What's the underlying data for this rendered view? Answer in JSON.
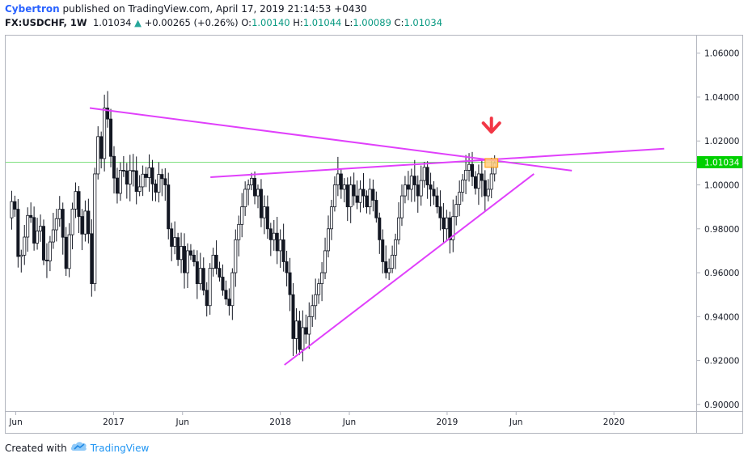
{
  "header": {
    "author": "Cybertron",
    "published_text": "published on TradingView.com, April 17, 2019 21:14:53 +0430",
    "symbol": "FX:USDCHF, 1W",
    "last": "1.01034",
    "change_arrow": "▲",
    "change": "+0.00265 (+0.26%)",
    "o_label": "O:",
    "o_value": "1.00140",
    "h_label": "H:",
    "h_value": "1.01044",
    "l_label": "L:",
    "l_value": "1.00089",
    "c_label": "C:",
    "c_value": "1.01034"
  },
  "footer": {
    "created_with": "Created with",
    "brand": "TradingView",
    "logo_icon": "tradingview-cloud-icon"
  },
  "colors": {
    "trendline": "#e040fb",
    "arrow": "#f23645",
    "price_line": "#7fe07f",
    "price_label_bg": "#00d000",
    "highlight_fill": "#ffcc80",
    "highlight_stroke": "#ff9800",
    "candle": "#131722"
  },
  "chart_data": {
    "type": "candlestick",
    "y_range": [
      0.897,
      1.068
    ],
    "y_ticks": [
      "0.90000",
      "0.92000",
      "0.94000",
      "0.96000",
      "0.98000",
      "1.00000",
      "1.02000",
      "1.04000",
      "1.06000"
    ],
    "x_ticks": [
      "Jun",
      "2017",
      "Jun",
      "2018",
      "Jun",
      "2019",
      "Jun",
      "2020"
    ],
    "current_price": "1.01034",
    "series": [
      {
        "segments": [
          {
            "start": "2016-05-16",
            "end": "2016-11-14",
            "values": [
              0.985,
              0.997,
              0.962,
              0.975,
              0.991,
              0.972,
              0.985,
              0.96,
              0.974,
              0.983,
              0.99,
              0.96,
              0.985,
              0.998,
              0.975,
              0.992,
              0.955
            ]
          },
          {
            "start": "2016-11-14",
            "end": "2016-12-19",
            "values": [
              0.975,
              1.005,
              1.022,
              1.012,
              1.035,
              1.03
            ]
          },
          {
            "start": "2016-12-19",
            "end": "2017-04-24",
            "values": [
              1.03,
              1.012,
              1.002,
              0.995,
              1.01,
              1.005,
              0.998,
              1.012,
              1.002,
              0.992,
              1.008,
              1.0,
              1.01,
              1.002,
              0.995,
              1.005,
              1.003,
              1.0
            ]
          },
          {
            "start": "2017-04-24",
            "end": "2017-08-07",
            "values": [
              1.0,
              0.98,
              0.972,
              0.976,
              0.966,
              0.972,
              0.96,
              0.97,
              0.968,
              0.965,
              0.955,
              0.962,
              0.952,
              0.945,
              0.962,
              0.968
            ]
          },
          {
            "start": "2017-08-07",
            "end": "2017-09-11",
            "values": [
              0.968,
              0.962,
              0.958,
              0.952,
              0.948,
              0.945
            ]
          },
          {
            "start": "2017-09-11",
            "end": "2017-10-30",
            "values": [
              0.945,
              0.96,
              0.975,
              0.982,
              0.99,
              0.998,
              1.0,
              1.003
            ]
          },
          {
            "start": "2017-10-30",
            "end": "2018-01-29",
            "values": [
              1.003,
              0.995,
              0.998,
              0.985,
              0.99,
              0.98,
              0.975,
              0.978,
              0.97,
              0.975,
              0.965,
              0.96,
              0.95,
              0.93
            ]
          },
          {
            "start": "2018-01-29",
            "end": "2018-03-19",
            "values": [
              0.93,
              0.938,
              0.925,
              0.935,
              0.932,
              0.94,
              0.945,
              0.95
            ]
          },
          {
            "start": "2018-03-19",
            "end": "2018-05-07",
            "values": [
              0.95,
              0.955,
              0.96,
              0.97,
              0.98,
              0.99,
              1.0,
              1.005
            ]
          },
          {
            "start": "2018-05-07",
            "end": "2018-07-16",
            "values": [
              1.005,
              0.998,
              1.0,
              0.99,
              1.0,
              0.995,
              0.992,
              0.998,
              0.995,
              0.99,
              0.998
            ]
          },
          {
            "start": "2018-07-16",
            "end": "2018-09-03",
            "values": [
              0.998,
              0.993,
              0.985,
              0.975,
              0.965,
              0.96,
              0.962,
              0.968
            ]
          },
          {
            "start": "2018-09-03",
            "end": "2018-11-12",
            "values": [
              0.968,
              0.975,
              0.985,
              0.995,
              1.0,
              0.998,
              1.004,
              1.0,
              0.995,
              1.002,
              1.008
            ]
          },
          {
            "start": "2018-11-12",
            "end": "2019-01-07",
            "values": [
              1.008,
              1.0,
              0.998,
              0.995,
              0.99,
              0.985,
              0.98,
              0.985,
              0.975
            ]
          },
          {
            "start": "2019-01-07",
            "end": "2019-03-11",
            "values": [
              0.975,
              0.985,
              0.99,
              0.995,
              1.0,
              1.005,
              1.008,
              1.01,
              1.002,
              0.998,
              1.005
            ]
          },
          {
            "start": "2019-03-11",
            "end": "2019-04-15",
            "values": [
              1.005,
              1.002,
              0.995,
              0.998,
              1.005,
              1.01
            ]
          }
        ]
      }
    ],
    "trendlines": [
      {
        "name": "upper-resistance-line",
        "from": [
          "2016-11-10",
          1.035
        ],
        "to": [
          "2019-10-01",
          1.0065
        ]
      },
      {
        "name": "mid-rising-line",
        "from": [
          "2017-08-01",
          1.0035
        ],
        "to": [
          "2020-04-20",
          1.0165
        ]
      },
      {
        "name": "lower-support-line",
        "from": [
          "2018-01-10",
          0.918
        ],
        "to": [
          "2019-07-10",
          1.005
        ]
      }
    ],
    "highlight_zone": {
      "x": [
        "2019-03-25",
        "2019-04-22"
      ],
      "y": [
        1.008,
        1.012
      ]
    },
    "arrow_at": [
      "2019-04-08",
      1.023
    ]
  }
}
